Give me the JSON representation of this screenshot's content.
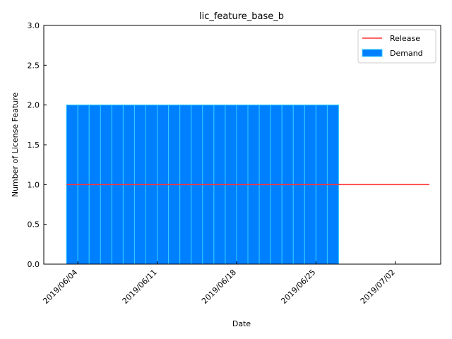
{
  "chart_data": {
    "type": "bar",
    "title": "lic_feature_base_b",
    "xlabel": "Date",
    "ylabel": "Number of License Feature",
    "ylim": [
      0,
      3.0
    ],
    "xlim": [
      "2019-06-01",
      "2019-07-06"
    ],
    "yticks": [
      "0.0",
      "0.5",
      "1.0",
      "1.5",
      "2.0",
      "2.5",
      "3.0"
    ],
    "xticks": [
      "2019/06/04",
      "2019/06/11",
      "2019/06/18",
      "2019/06/25",
      "2019/07/02"
    ],
    "x_tick_dates": [
      "2019-06-04",
      "2019-06-11",
      "2019-06-18",
      "2019-06-25",
      "2019-07-02"
    ],
    "grid": false,
    "legend_position": "top-right",
    "series": [
      {
        "name": "Demand",
        "kind": "bar",
        "color": "#0080ff",
        "edge_color": "#33ccff",
        "categories": [
          "2019-06-03",
          "2019-06-04",
          "2019-06-05",
          "2019-06-06",
          "2019-06-07",
          "2019-06-08",
          "2019-06-09",
          "2019-06-10",
          "2019-06-11",
          "2019-06-12",
          "2019-06-13",
          "2019-06-14",
          "2019-06-15",
          "2019-06-16",
          "2019-06-17",
          "2019-06-18",
          "2019-06-19",
          "2019-06-20",
          "2019-06-21",
          "2019-06-22",
          "2019-06-23",
          "2019-06-24",
          "2019-06-25",
          "2019-06-26",
          "2019-06-27",
          "2019-06-28",
          "2019-06-29",
          "2019-06-30",
          "2019-07-01",
          "2019-07-02",
          "2019-07-03",
          "2019-07-04"
        ],
        "values": [
          2,
          2,
          2,
          2,
          2,
          2,
          2,
          2,
          2,
          2,
          2,
          2,
          2,
          2,
          2,
          2,
          2,
          2,
          2,
          2,
          2,
          2,
          2,
          2,
          0,
          0,
          0,
          0,
          0,
          0,
          0,
          0
        ]
      },
      {
        "name": "Release",
        "kind": "line",
        "color": "#ff3333",
        "x": [
          "2019-06-03",
          "2019-07-05"
        ],
        "values": [
          1,
          1
        ]
      }
    ]
  }
}
